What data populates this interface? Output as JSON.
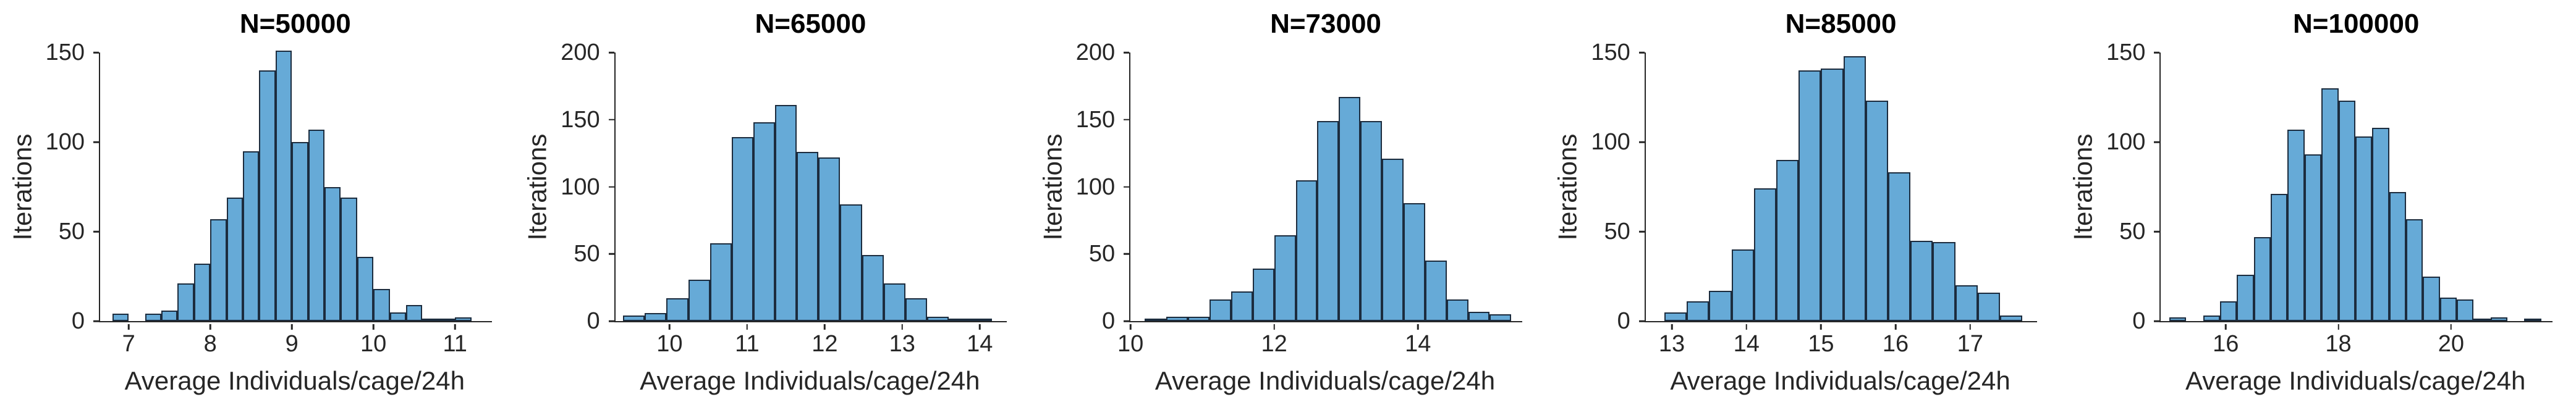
{
  "figure": {
    "ylabel": "Iterations",
    "xlabel": "Average Individuals/cage/24h",
    "grid": false,
    "legend": null,
    "colors": {
      "bar_fill": "#66AAD7",
      "bar_edge": "#1C2C3E",
      "axis": "#262626",
      "tick_label": "#262626",
      "title": "#000000"
    }
  },
  "chart_data": [
    {
      "type": "bar",
      "subtype": "histogram",
      "title": "N=50000",
      "xlabel": "Average Individuals/cage/24h",
      "ylabel": "Iterations",
      "ylim": [
        0,
        150
      ],
      "yticks": [
        0,
        50,
        100,
        150
      ],
      "xlim": [
        6.65,
        11.45
      ],
      "xticks": [
        7,
        8,
        9,
        10,
        11
      ],
      "bin_start": 6.8,
      "bin_width": 0.2,
      "values": [
        4,
        0,
        4,
        6,
        21,
        32,
        57,
        69,
        95,
        140,
        151,
        100,
        107,
        75,
        69,
        36,
        18,
        5,
        9,
        1,
        1,
        2
      ]
    },
    {
      "type": "bar",
      "subtype": "histogram",
      "title": "N=65000",
      "xlabel": "Average Individuals/cage/24h",
      "ylabel": "Iterations",
      "ylim": [
        0,
        200
      ],
      "yticks": [
        0,
        50,
        100,
        150,
        200
      ],
      "xlim": [
        9.3,
        14.35
      ],
      "xticks": [
        10,
        11,
        12,
        13,
        14
      ],
      "bin_start": 9.4,
      "bin_width": 0.28,
      "values": [
        4,
        6,
        17,
        31,
        58,
        137,
        148,
        161,
        126,
        122,
        87,
        49,
        28,
        17,
        3,
        2,
        2
      ]
    },
    {
      "type": "bar",
      "subtype": "histogram",
      "title": "N=73000",
      "xlabel": "Average Individuals/cage/24h",
      "ylabel": "Iterations",
      "ylim": [
        0,
        200
      ],
      "yticks": [
        0,
        50,
        100,
        150,
        200
      ],
      "xlim": [
        10.0,
        15.45
      ],
      "xticks": [
        10,
        12,
        14
      ],
      "bin_start": 10.2,
      "bin_width": 0.3,
      "values": [
        1,
        3,
        3,
        16,
        22,
        39,
        64,
        105,
        149,
        167,
        149,
        121,
        88,
        45,
        16,
        7,
        5
      ]
    },
    {
      "type": "bar",
      "subtype": "histogram",
      "title": "N=85000",
      "xlabel": "Average Individuals/cage/24h",
      "ylabel": "Iterations",
      "ylim": [
        0,
        150
      ],
      "yticks": [
        0,
        50,
        100,
        150
      ],
      "xlim": [
        12.65,
        17.9
      ],
      "xticks": [
        13,
        14,
        15,
        16,
        17
      ],
      "bin_start": 12.9,
      "bin_width": 0.3,
      "values": [
        5,
        11,
        17,
        40,
        74,
        90,
        140,
        141,
        148,
        123,
        83,
        45,
        44,
        20,
        16,
        3
      ]
    },
    {
      "type": "bar",
      "subtype": "histogram",
      "title": "N=100000",
      "xlabel": "Average Individuals/cage/24h",
      "ylabel": "Iterations",
      "ylim": [
        0,
        150
      ],
      "yticks": [
        0,
        50,
        100,
        150
      ],
      "xlim": [
        14.85,
        21.8
      ],
      "xticks": [
        16,
        18,
        20
      ],
      "bin_start": 15.0,
      "bin_width": 0.3,
      "values": [
        2,
        0,
        3,
        11,
        26,
        47,
        71,
        107,
        93,
        130,
        123,
        103,
        108,
        72,
        57,
        25,
        13,
        12,
        1,
        2,
        0,
        1
      ]
    }
  ]
}
